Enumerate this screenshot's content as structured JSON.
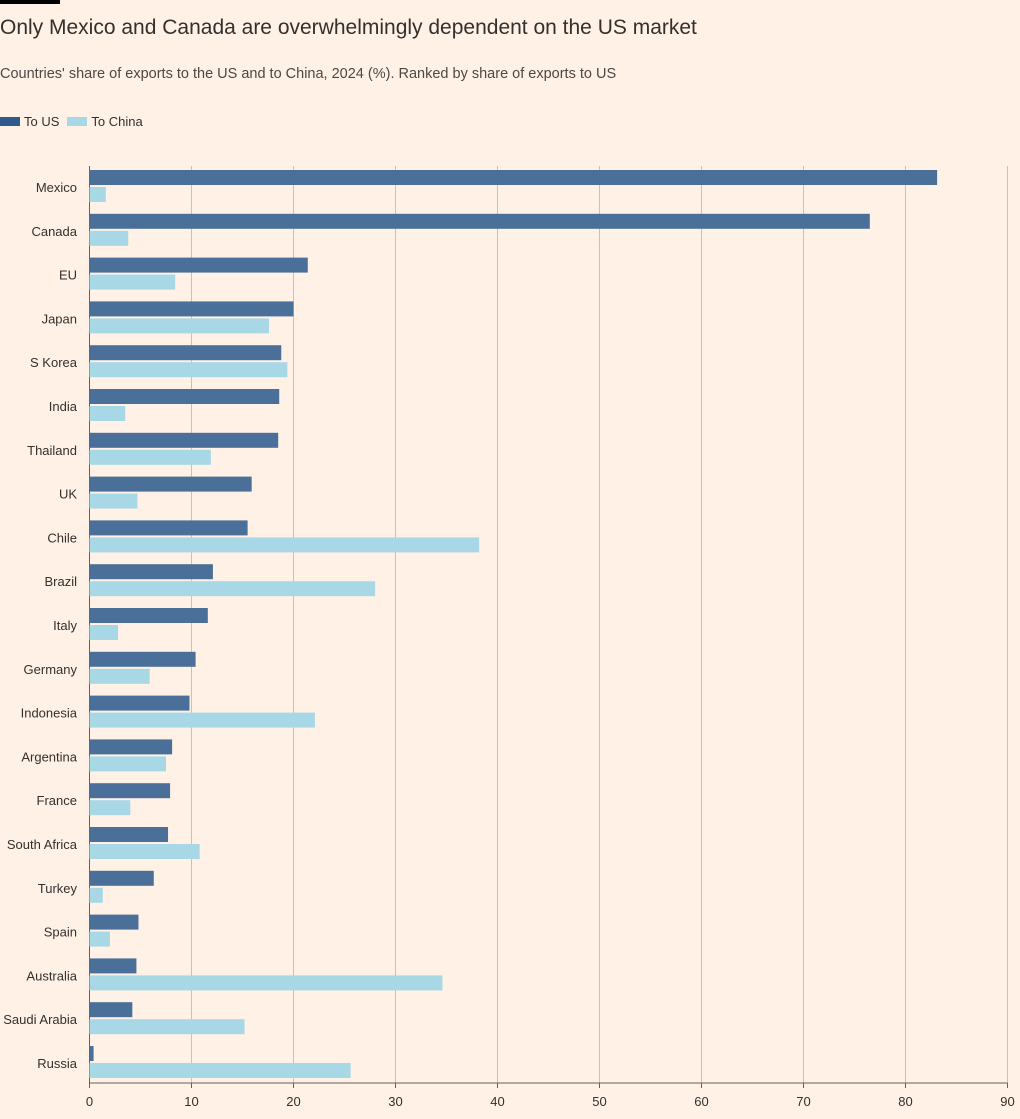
{
  "header": {
    "title": "Only Mexico and Canada are overwhelmingly dependent on the US market",
    "subtitle": "Countries' share of exports to the US and to China, 2024 (%). Ranked by share of exports to US"
  },
  "legend": {
    "items": [
      {
        "label": "To US",
        "color": "#4a709a"
      },
      {
        "label": "To China",
        "color": "#a8d8e6"
      }
    ]
  },
  "chart_data": {
    "type": "bar",
    "orientation": "horizontal",
    "title": "Only Mexico and Canada are overwhelmingly dependent on the US market",
    "subtitle": "Countries' share of exports to the US and to China, 2024 (%). Ranked by share of exports to US",
    "xlabel": "",
    "ylabel": "",
    "xlim": [
      0,
      90
    ],
    "xticks": [
      0,
      10,
      20,
      30,
      40,
      50,
      60,
      70,
      80,
      90
    ],
    "grid": "vertical",
    "legend_position": "top-left",
    "categories": [
      "Mexico",
      "Canada",
      "EU",
      "Japan",
      "S Korea",
      "India",
      "Thailand",
      "UK",
      "Chile",
      "Brazil",
      "Italy",
      "Germany",
      "Indonesia",
      "Argentina",
      "France",
      "South Africa",
      "Turkey",
      "Spain",
      "Australia",
      "Saudi Arabia",
      "Russia"
    ],
    "series": [
      {
        "name": "To US",
        "color": "#4a709a",
        "values": [
          83.1,
          76.5,
          21.4,
          20.0,
          18.8,
          18.6,
          18.5,
          15.9,
          15.5,
          12.1,
          11.6,
          10.4,
          9.8,
          8.1,
          7.9,
          7.7,
          6.3,
          4.8,
          4.6,
          4.2,
          0.4
        ]
      },
      {
        "name": "To China",
        "color": "#a8d8e6",
        "values": [
          1.6,
          3.8,
          8.4,
          17.6,
          19.4,
          3.5,
          11.9,
          4.7,
          38.2,
          28.0,
          2.8,
          5.9,
          22.1,
          7.5,
          4.0,
          10.8,
          1.3,
          2.0,
          34.6,
          15.2,
          25.6
        ]
      }
    ]
  }
}
